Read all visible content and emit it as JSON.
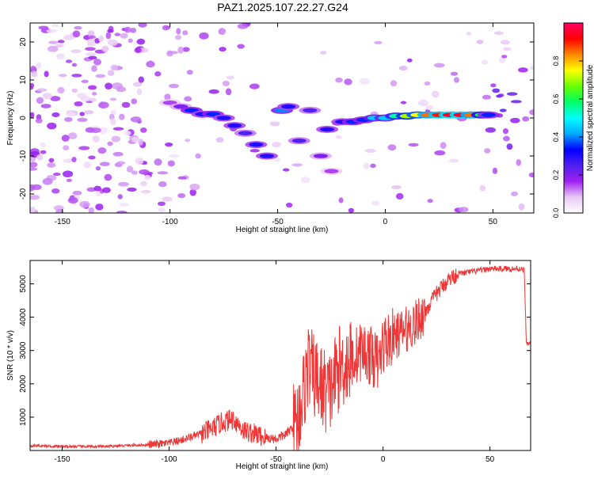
{
  "page_title": "PAZ1.2025.107.22.27.G24",
  "colors": {
    "snr_line": "#ef3636",
    "background": "#ffffff",
    "axis": "#000000",
    "colorbar_stops": [
      "#ffffff",
      "#e8c9f5",
      "#a020f0",
      "#5020f0",
      "#0000ff",
      "#00aaff",
      "#00ffff",
      "#00ff66",
      "#66ff00",
      "#ffff00",
      "#ff8800",
      "#ff0000",
      "#ff0066"
    ]
  },
  "chart_data": [
    {
      "id": "spectrogram",
      "type": "heatmap",
      "title": "PAZ1.2025.107.22.27.G24",
      "xlabel": "Height of straight line (km)",
      "ylabel": "Frequency (Hz)",
      "xlim": [
        -165,
        69
      ],
      "ylim": [
        -25,
        25
      ],
      "xticks": [
        -150,
        -100,
        -50,
        0,
        50
      ],
      "yticks": [
        -20,
        -10,
        0,
        10,
        20
      ],
      "colorbar": {
        "label": "Normalized spectral amplitude",
        "range": [
          0,
          1
        ],
        "ticks": [
          0.0,
          0.2,
          0.4,
          0.6,
          0.8
        ]
      },
      "ridge": [
        {
          "x": -100,
          "f": 4,
          "a": 0.15
        },
        {
          "x": -95,
          "f": 3,
          "a": 0.2
        },
        {
          "x": -90,
          "f": 2,
          "a": 0.35
        },
        {
          "x": -85,
          "f": 1,
          "a": 0.3
        },
        {
          "x": -80,
          "f": 1,
          "a": 0.35
        },
        {
          "x": -75,
          "f": 0,
          "a": 0.3
        },
        {
          "x": -70,
          "f": -2,
          "a": 0.3
        },
        {
          "x": -65,
          "f": -4,
          "a": 0.25
        },
        {
          "x": -60,
          "f": -7,
          "a": 0.3
        },
        {
          "x": -55,
          "f": -10,
          "a": 0.3
        },
        {
          "x": -48,
          "f": 2,
          "a": 0.4
        },
        {
          "x": -45,
          "f": 3,
          "a": 0.3
        },
        {
          "x": -40,
          "f": -6,
          "a": 0.25
        },
        {
          "x": -35,
          "f": 2,
          "a": 0.25
        },
        {
          "x": -30,
          "f": -10,
          "a": 0.2
        },
        {
          "x": -27,
          "f": -3,
          "a": 0.3
        },
        {
          "x": -25,
          "f": -14,
          "a": 0.15
        },
        {
          "x": -20,
          "f": -1,
          "a": 0.3
        },
        {
          "x": -15,
          "f": -1,
          "a": 0.35
        },
        {
          "x": -10,
          "f": -0.5,
          "a": 0.35
        },
        {
          "x": -5,
          "f": 0,
          "a": 0.45
        },
        {
          "x": 0,
          "f": 0,
          "a": 0.45
        },
        {
          "x": 5,
          "f": 0.5,
          "a": 0.55
        },
        {
          "x": 10,
          "f": 0.5,
          "a": 0.7
        },
        {
          "x": 15,
          "f": 0.8,
          "a": 0.75
        },
        {
          "x": 20,
          "f": 0.8,
          "a": 0.85
        },
        {
          "x": 25,
          "f": 0.8,
          "a": 0.9
        },
        {
          "x": 30,
          "f": 0.8,
          "a": 0.95
        },
        {
          "x": 35,
          "f": 0.8,
          "a": 0.95
        },
        {
          "x": 40,
          "f": 0.8,
          "a": 0.85
        },
        {
          "x": 45,
          "f": 0.8,
          "a": 0.6
        },
        {
          "x": 48,
          "f": 0.8,
          "a": 0.35
        }
      ]
    },
    {
      "id": "snr",
      "type": "line",
      "xlabel": "Height of straight line (km)",
      "ylabel": "SNR (10 * v/v)",
      "xlim": [
        -165,
        69
      ],
      "ylim": [
        0,
        5700
      ],
      "xticks": [
        -150,
        -100,
        -50,
        0,
        50
      ],
      "yticks": [
        1000,
        2000,
        3000,
        4000,
        5000
      ],
      "series": [
        {
          "x": [
            -165,
            -150,
            -130,
            -120,
            -110,
            -100,
            -95,
            -90,
            -85,
            -80,
            -75,
            -70,
            -65,
            -60,
            -55,
            -50,
            -45,
            -40,
            -37,
            -35,
            -33,
            -30,
            -27,
            -25,
            -22,
            -20,
            -18,
            -15,
            -10,
            -5,
            -2,
            0,
            5,
            10,
            15,
            20,
            25,
            30,
            35,
            40,
            45,
            50,
            55,
            60,
            65,
            66,
            67,
            68,
            69
          ],
          "y": [
            150,
            120,
            120,
            150,
            170,
            220,
            300,
            400,
            500,
            650,
            850,
            950,
            600,
            500,
            380,
            350,
            500,
            900,
            1800,
            2600,
            2300,
            2000,
            1800,
            1700,
            2300,
            2500,
            2600,
            2700,
            3000,
            2800,
            2600,
            3200,
            3400,
            3600,
            3800,
            4200,
            4700,
            5100,
            5300,
            5350,
            5400,
            5450,
            5450,
            5450,
            5450,
            5400,
            3200,
            3200,
            3250
          ]
        }
      ]
    }
  ]
}
